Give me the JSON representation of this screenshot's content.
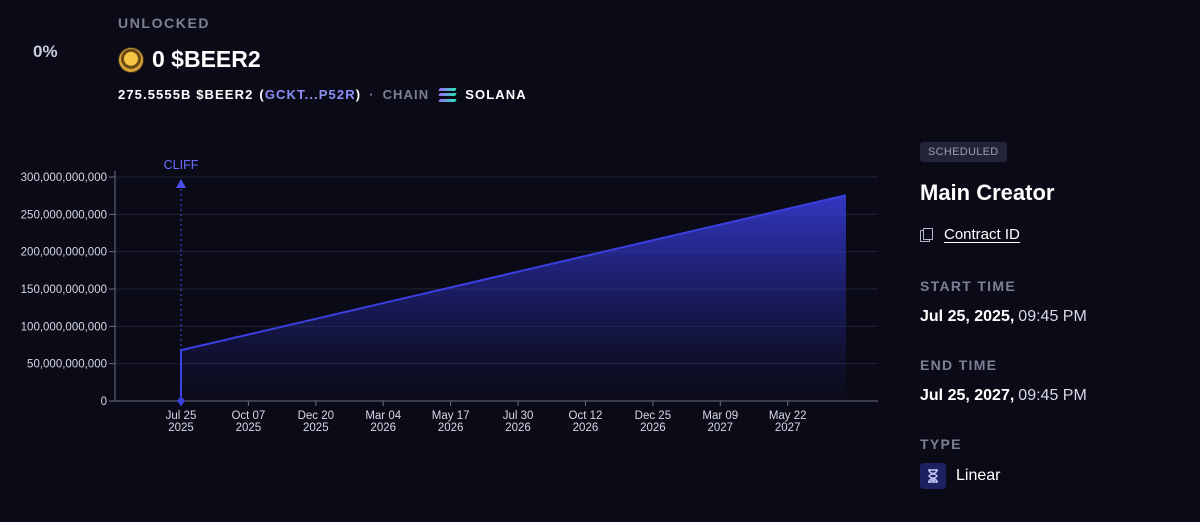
{
  "progress": {
    "percent_label": "0%",
    "unlocked_label": "UNLOCKED"
  },
  "token": {
    "logo_icon": "beer-token-logo-icon",
    "unlocked_amount": "0 $BEER2",
    "total": "275.5555B $BEER2",
    "address_open": "(",
    "address": "GCKT...P52R",
    "address_close": ")",
    "separator": "·",
    "chain_label": "CHAIN",
    "chain_icon": "solana-icon",
    "chain_name": "SOLANA"
  },
  "details": {
    "status_badge": "SCHEDULED",
    "recipient": "Main Creator",
    "contract_icon": "copy-icon",
    "contract_link": "Contract ID",
    "start_label": "START TIME",
    "start_date": "Jul 25, 2025,",
    "start_time": "09:45 PM",
    "end_label": "END TIME",
    "end_date": "Jul 25, 2027,",
    "end_time": "09:45 PM",
    "type_label": "TYPE",
    "type_icon": "hourglass-icon",
    "type_value": "Linear"
  },
  "colors": {
    "background": "#0b0b18",
    "accent": "#3a3fe0",
    "address_link": "#8c8ff5",
    "muted_text": "#7d7f94"
  },
  "chart_data": {
    "type": "area",
    "x_start": "2025-07-25",
    "x_end": "2027-07-25",
    "points": [
      {
        "x": "2025-07-25",
        "y": 0
      },
      {
        "x": "2025-07-25",
        "y": 68000000000
      },
      {
        "x": "2027-07-25",
        "y": 275555500000
      }
    ],
    "ylim": [
      0,
      300000000000
    ],
    "y_ticks": [
      0,
      50000000000,
      100000000000,
      150000000000,
      200000000000,
      250000000000,
      300000000000
    ],
    "y_tick_labels": [
      "0",
      "50,000,000,000",
      "100,000,000,000",
      "150,000,000,000",
      "200,000,000,000",
      "250,000,000,000",
      "300,000,000,000"
    ],
    "x_ticks": [
      {
        "date": "2025-07-25",
        "line1": "Jul 25",
        "line2": "2025"
      },
      {
        "date": "2025-10-07",
        "line1": "Oct 07",
        "line2": "2025"
      },
      {
        "date": "2025-12-20",
        "line1": "Dec 20",
        "line2": "2025"
      },
      {
        "date": "2026-03-04",
        "line1": "Mar 04",
        "line2": "2026"
      },
      {
        "date": "2026-05-17",
        "line1": "May 17",
        "line2": "2026"
      },
      {
        "date": "2026-07-30",
        "line1": "Jul 30",
        "line2": "2026"
      },
      {
        "date": "2026-10-12",
        "line1": "Oct 12",
        "line2": "2026"
      },
      {
        "date": "2026-12-25",
        "line1": "Dec 25",
        "line2": "2026"
      },
      {
        "date": "2027-03-09",
        "line1": "Mar 09",
        "line2": "2027"
      },
      {
        "date": "2027-05-22",
        "line1": "May 22",
        "line2": "2027"
      }
    ],
    "annotation": {
      "label": "CLIFF",
      "date": "2025-07-25"
    },
    "grid": true,
    "legend": "none"
  }
}
